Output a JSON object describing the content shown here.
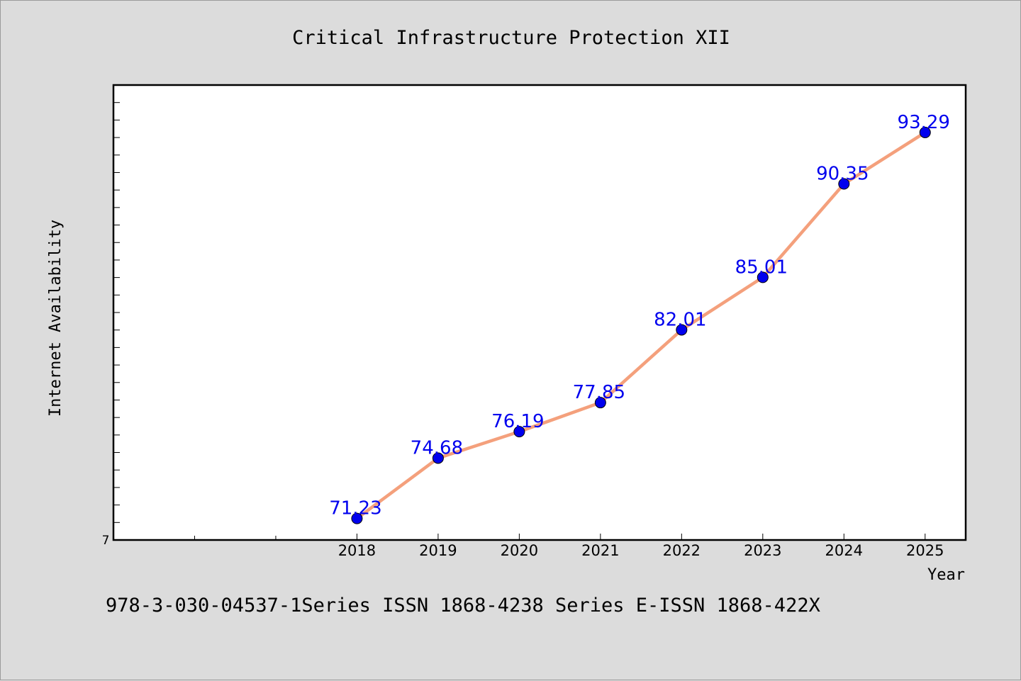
{
  "chart_data": {
    "type": "line",
    "title": "Critical Infrastructure Protection XII",
    "xlabel": "Year",
    "ylabel": "Internet Availability",
    "categories": [
      "2018",
      "2019",
      "2020",
      "2021",
      "2022",
      "2023",
      "2024",
      "2025"
    ],
    "series": [
      {
        "values": [
          71.23,
          74.68,
          76.19,
          77.85,
          82.01,
          85.01,
          90.35,
          93.29
        ],
        "data_labels": [
          "71.23",
          "74.68",
          "76.19",
          "77.85",
          "82.01",
          "85.01",
          "90.35",
          "93.29"
        ]
      }
    ],
    "y_tick_label": "7",
    "ylim": [
      70,
      96
    ],
    "y_minor_step": 1,
    "x_range": [
      2015,
      2025.5
    ],
    "x_minor_ticks": [
      2016,
      2017
    ],
    "grid": false,
    "colors": {
      "line": "#f4a07c",
      "marker": "#0000ee",
      "label": "#0000ee"
    }
  },
  "footer": {
    "text": "978-3-030-04537-1Series ISSN 1868-4238 Series E-ISSN 1868-422X"
  }
}
